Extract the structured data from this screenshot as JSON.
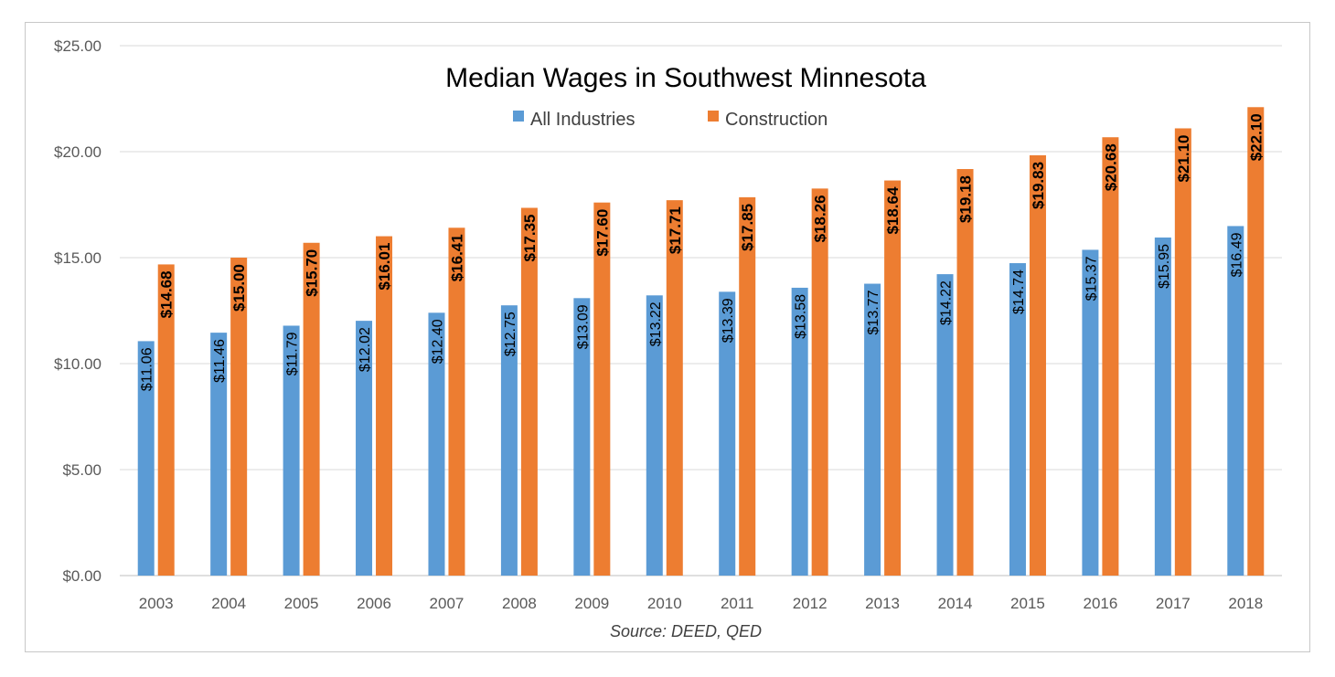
{
  "chart_data": {
    "type": "bar",
    "title": "Median Wages in Southwest Minnesota",
    "source": "Source: DEED, QED",
    "categories": [
      "2003",
      "2004",
      "2005",
      "2006",
      "2007",
      "2008",
      "2009",
      "2010",
      "2011",
      "2012",
      "2013",
      "2014",
      "2015",
      "2016",
      "2017",
      "2018"
    ],
    "series": [
      {
        "name": "All Industries",
        "color": "#5b9bd5",
        "values": [
          11.06,
          11.46,
          11.79,
          12.02,
          12.4,
          12.75,
          13.09,
          13.22,
          13.39,
          13.58,
          13.77,
          14.22,
          14.74,
          15.37,
          15.95,
          16.49
        ],
        "labels": [
          "$11.06",
          "$11.46",
          "$11.79",
          "$12.02",
          "$12.40",
          "$12.75",
          "$13.09",
          "$13.22",
          "$13.39",
          "$13.58",
          "$13.77",
          "$14.22",
          "$14.74",
          "$15.37",
          "$15.95",
          "$16.49"
        ]
      },
      {
        "name": "Construction",
        "color": "#ed7d31",
        "values": [
          14.68,
          15.0,
          15.7,
          16.01,
          16.41,
          17.35,
          17.6,
          17.71,
          17.85,
          18.26,
          18.64,
          19.18,
          19.83,
          20.68,
          21.1,
          22.1
        ],
        "labels": [
          "$14.68",
          "$15.00",
          "$15.70",
          "$16.01",
          "$16.41",
          "$17.35",
          "$17.60",
          "$17.71",
          "$17.85",
          "$18.26",
          "$18.64",
          "$19.18",
          "$19.83",
          "$20.68",
          "$21.10",
          "$22.10"
        ]
      }
    ],
    "y_ticks": [
      "$0.00",
      "$5.00",
      "$10.00",
      "$15.00",
      "$20.00",
      "$25.00"
    ],
    "y_tick_values": [
      0,
      5,
      10,
      15,
      20,
      25
    ],
    "ylim": [
      0,
      25
    ],
    "grid": true,
    "legend_position": "top-center"
  }
}
